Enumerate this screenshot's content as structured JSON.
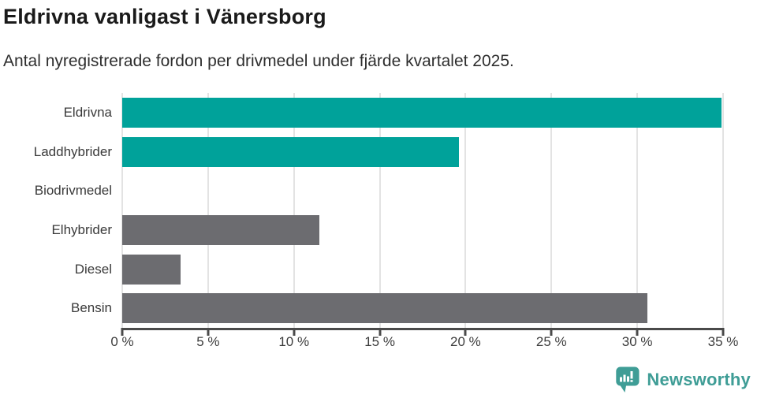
{
  "title": "Eldrivna vanligast i Vänersborg",
  "subtitle": "Antal nyregistrerade fordon per drivmedel under fjärde kvartalet 2025.",
  "colors": {
    "bar_teal": "#00A29A",
    "bar_gray": "#6C6C70",
    "gridline": "#E3E3E3",
    "axis": "#4A4A4A",
    "tick_text": "#3D3D3D",
    "label_text": "#3A3A3A",
    "title_text": "#1A1A1A",
    "brand_teal": "#3F9D96"
  },
  "chart_data": {
    "type": "bar",
    "orientation": "horizontal",
    "title": "Eldrivna vanligast i Vänersborg",
    "subtitle": "Antal nyregistrerade fordon per drivmedel under fjärde kvartalet 2025.",
    "categories": [
      "Eldrivna",
      "Laddhybrider",
      "Biodrivmedel",
      "Elhybrider",
      "Diesel",
      "Bensin"
    ],
    "values": [
      34.9,
      19.6,
      0,
      11.5,
      3.4,
      30.6
    ],
    "unit": "%",
    "bar_colors": [
      "#00A29A",
      "#00A29A",
      "#6C6C70",
      "#6C6C70",
      "#6C6C70",
      "#6C6C70"
    ],
    "xlim": [
      0,
      35
    ],
    "x_tick_values": [
      0,
      5,
      10,
      15,
      20,
      25,
      30,
      35
    ],
    "x_tick_labels": [
      "0 %",
      "5 %",
      "10 %",
      "15 %",
      "20 %",
      "25 %",
      "30 %",
      "35 %"
    ],
    "grid": "vertical",
    "legend": "none"
  },
  "footer": {
    "brand": "Newsworthy",
    "logo_icon": "newsworthy-bar-chart-bubble-icon"
  }
}
